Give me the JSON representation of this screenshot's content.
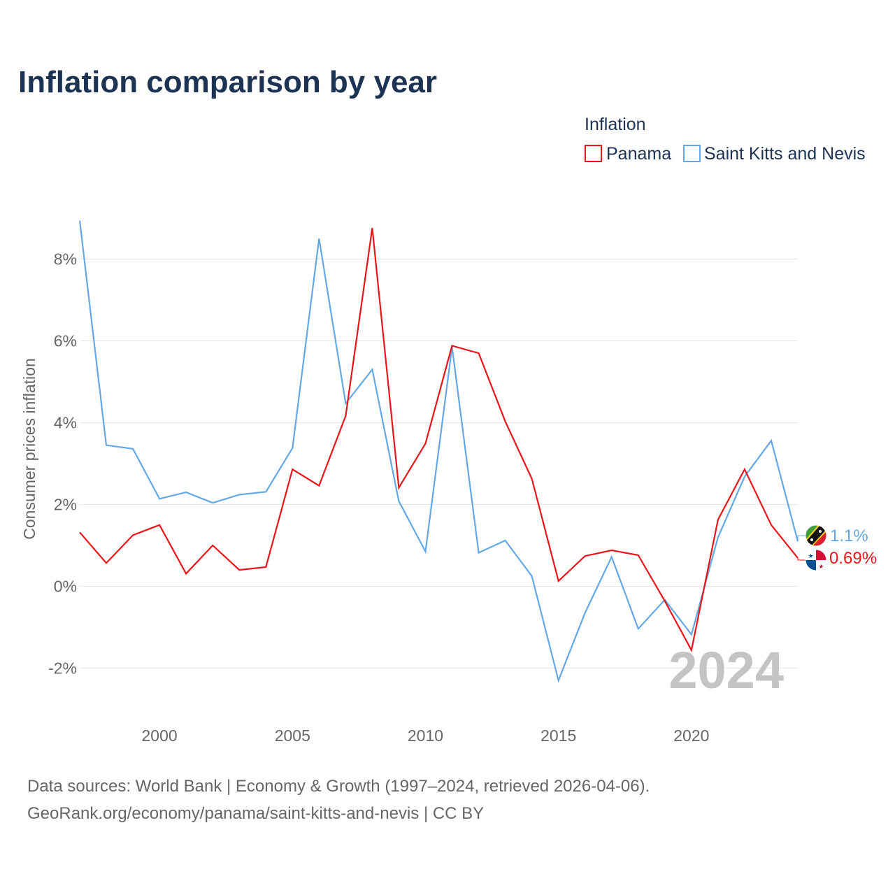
{
  "colors": {
    "panama": "#e8161b",
    "skn": "#64a8e6",
    "title": "#1d3353",
    "axis_text": "#666666",
    "grid": "#e6e6e6",
    "watermark": "#c4c4c4"
  },
  "chart_data": {
    "type": "line",
    "title": "Inflation comparison by year",
    "ylabel": "Consumer prices inflation",
    "xlabel": "",
    "legend_title": "Inflation",
    "legend_position": "top-right",
    "grid": true,
    "xlim": [
      1997,
      2024
    ],
    "ylim": [
      -3,
      9
    ],
    "x_ticks": [
      2000,
      2005,
      2010,
      2015,
      2020
    ],
    "x_tick_labels": [
      "2000",
      "2005",
      "2010",
      "2015",
      "2020"
    ],
    "y_ticks": [
      -2,
      0,
      2,
      4,
      6,
      8
    ],
    "y_tick_labels": [
      "-2%",
      "0%",
      "2%",
      "4%",
      "6%",
      "8%"
    ],
    "watermark_year": "2024",
    "x": [
      1997,
      1998,
      1999,
      2000,
      2001,
      2002,
      2003,
      2004,
      2005,
      2006,
      2007,
      2008,
      2009,
      2010,
      2011,
      2012,
      2013,
      2014,
      2015,
      2016,
      2017,
      2018,
      2019,
      2020,
      2021,
      2022,
      2023,
      2024
    ],
    "series": [
      {
        "key": "panama",
        "name": "Panama",
        "end_label": "0.69%",
        "values": [
          1.32,
          0.57,
          1.25,
          1.5,
          0.31,
          1.0,
          0.4,
          0.47,
          2.86,
          2.46,
          4.17,
          8.76,
          2.41,
          3.49,
          5.88,
          5.7,
          4.03,
          2.63,
          0.13,
          0.74,
          0.88,
          0.76,
          -0.36,
          -1.56,
          1.63,
          2.86,
          1.5,
          0.69
        ]
      },
      {
        "key": "skn",
        "name": "Saint Kitts and Nevis",
        "end_label": "1.1%",
        "values": [
          8.94,
          3.45,
          3.36,
          2.14,
          2.3,
          2.04,
          2.24,
          2.31,
          3.38,
          8.5,
          4.47,
          5.3,
          2.08,
          0.85,
          5.85,
          0.82,
          1.12,
          0.25,
          -2.3,
          -0.65,
          0.72,
          -1.04,
          -0.33,
          -1.18,
          1.2,
          2.68,
          3.56,
          1.1
        ]
      }
    ],
    "source_line1": "Data sources: World Bank | Economy & Growth (1997–2024, retrieved 2026-04-06).",
    "source_line2": "GeoRank.org/economy/panama/saint-kitts-and-nevis | CC BY"
  }
}
